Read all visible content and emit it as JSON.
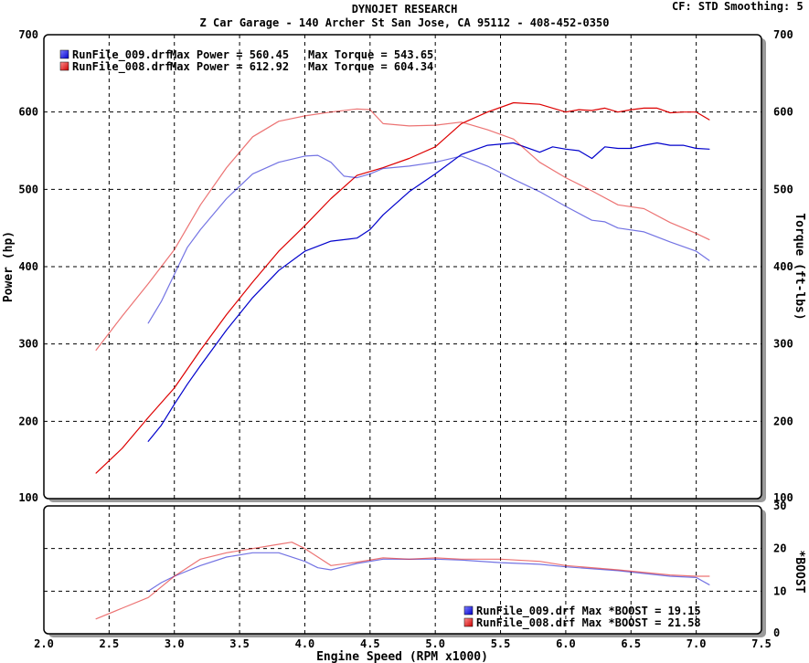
{
  "header": {
    "title": "DYNOJET RESEARCH",
    "subtitle": "Z Car Garage - 140 Archer St San Jose, CA 95112 - 408-452-0350",
    "cf": "CF: STD",
    "smoothing": "Smoothing: 5"
  },
  "legend_main": [
    {
      "run": "RunFile_009.drf",
      "power_label": "Max Power = 560.45",
      "torque_label": "Max Torque = 543.65",
      "color": "#0000cc"
    },
    {
      "run": "RunFile_008.drf",
      "power_label": "Max Power = 612.92",
      "torque_label": "Max Torque = 604.34",
      "color": "#dd0000"
    }
  ],
  "legend_boost": [
    {
      "label": "RunFile_009.drf Max *BOOST = 19.15",
      "color": "#0000cc"
    },
    {
      "label": "RunFile_008.drf Max *BOOST = 21.58",
      "color": "#dd0000"
    }
  ],
  "chart_data": [
    {
      "type": "line",
      "panel": "power-torque",
      "xlabel": "Engine Speed (RPM x1000)",
      "ylabel": "Power (hp)",
      "y2label": "Torque (ft-lbs)",
      "xlim": [
        2.0,
        7.5
      ],
      "ylim": [
        100,
        700
      ],
      "y2lim": [
        100,
        700
      ],
      "xticks": [
        "2.0",
        "2.5",
        "3.0",
        "3.5",
        "4.0",
        "4.5",
        "5.0",
        "5.5",
        "6.0",
        "6.5",
        "7.0",
        "7.5"
      ],
      "yticks": [
        "100",
        "200",
        "300",
        "400",
        "500",
        "600",
        "700"
      ],
      "grid": true,
      "legend": "top-left",
      "series": [
        {
          "name": "RunFile_009.drf Power",
          "color": "#0000cc",
          "style": "solid",
          "x": [
            2.8,
            2.9,
            3.0,
            3.1,
            3.2,
            3.4,
            3.6,
            3.8,
            4.0,
            4.2,
            4.4,
            4.5,
            4.6,
            4.8,
            5.0,
            5.2,
            5.4,
            5.6,
            5.8,
            5.9,
            6.0,
            6.1,
            6.2,
            6.3,
            6.4,
            6.5,
            6.6,
            6.7,
            6.8,
            6.9,
            7.0,
            7.1
          ],
          "y": [
            174,
            195,
            222,
            248,
            272,
            318,
            360,
            395,
            420,
            433,
            437,
            448,
            467,
            497,
            520,
            545,
            557,
            560,
            548,
            555,
            552,
            550,
            540,
            555,
            553,
            553,
            557,
            560,
            557,
            557,
            553,
            552
          ]
        },
        {
          "name": "RunFile_008.drf Power",
          "color": "#dd0000",
          "style": "solid",
          "x": [
            2.4,
            2.6,
            2.8,
            3.0,
            3.2,
            3.4,
            3.6,
            3.8,
            4.0,
            4.2,
            4.4,
            4.6,
            4.8,
            5.0,
            5.2,
            5.4,
            5.6,
            5.8,
            6.0,
            6.1,
            6.2,
            6.3,
            6.4,
            6.5,
            6.6,
            6.7,
            6.8,
            6.9,
            7.0,
            7.1
          ],
          "y": [
            133,
            165,
            205,
            243,
            292,
            338,
            380,
            420,
            453,
            488,
            518,
            528,
            540,
            555,
            585,
            600,
            612,
            610,
            600,
            603,
            602,
            605,
            600,
            603,
            605,
            605,
            599,
            600,
            600,
            590
          ]
        },
        {
          "name": "RunFile_009.drf Torque",
          "color": "#0000cc",
          "style": "faded",
          "x": [
            2.8,
            2.9,
            3.0,
            3.1,
            3.2,
            3.4,
            3.6,
            3.8,
            4.0,
            4.1,
            4.2,
            4.3,
            4.4,
            4.5,
            4.6,
            4.8,
            5.0,
            5.2,
            5.4,
            5.6,
            5.8,
            6.0,
            6.2,
            6.3,
            6.4,
            6.6,
            6.8,
            7.0,
            7.1
          ],
          "y": [
            327,
            355,
            390,
            425,
            448,
            488,
            520,
            535,
            543,
            544,
            535,
            517,
            515,
            520,
            527,
            530,
            535,
            543,
            530,
            513,
            497,
            478,
            460,
            458,
            450,
            445,
            432,
            420,
            408
          ]
        },
        {
          "name": "RunFile_008.drf Torque",
          "color": "#dd0000",
          "style": "faded",
          "x": [
            2.4,
            2.6,
            2.8,
            3.0,
            3.2,
            3.4,
            3.6,
            3.8,
            4.0,
            4.2,
            4.4,
            4.5,
            4.6,
            4.8,
            5.0,
            5.2,
            5.4,
            5.6,
            5.8,
            6.0,
            6.2,
            6.4,
            6.6,
            6.8,
            7.0,
            7.1
          ],
          "y": [
            292,
            336,
            378,
            422,
            480,
            528,
            568,
            588,
            595,
            600,
            604,
            603,
            585,
            582,
            583,
            587,
            577,
            565,
            535,
            515,
            498,
            480,
            475,
            457,
            443,
            435
          ]
        }
      ]
    },
    {
      "type": "line",
      "panel": "boost",
      "xlabel": "Engine Speed (RPM x1000)",
      "ylabel": "*BOOST",
      "xlim": [
        2.0,
        7.5
      ],
      "ylim": [
        0,
        30
      ],
      "yticks": [
        "0",
        "10",
        "20",
        "30"
      ],
      "grid": true,
      "legend": "bottom-right",
      "series": [
        {
          "name": "RunFile_009.drf *BOOST",
          "color": "#0000cc",
          "style": "faded",
          "x": [
            2.8,
            2.9,
            3.0,
            3.2,
            3.4,
            3.6,
            3.8,
            4.0,
            4.1,
            4.2,
            4.4,
            4.6,
            4.8,
            5.0,
            5.2,
            5.5,
            5.8,
            6.0,
            6.4,
            6.8,
            7.0,
            7.1
          ],
          "y": [
            10,
            12,
            13.5,
            16,
            18,
            19,
            19,
            17,
            15.5,
            15,
            16.5,
            17.5,
            17.5,
            17.5,
            17.3,
            16.7,
            16.3,
            15.7,
            14.8,
            13.5,
            13.2,
            11.5
          ]
        },
        {
          "name": "RunFile_008.drf *BOOST",
          "color": "#dd0000",
          "style": "faded",
          "x": [
            2.4,
            2.6,
            2.8,
            3.0,
            3.2,
            3.4,
            3.6,
            3.8,
            3.9,
            4.0,
            4.2,
            4.4,
            4.6,
            4.8,
            5.0,
            5.2,
            5.5,
            5.8,
            6.0,
            6.4,
            6.8,
            7.0,
            7.1
          ],
          "y": [
            3.5,
            6,
            8.5,
            13.5,
            17.5,
            19,
            20,
            21,
            21.5,
            20,
            16,
            16.8,
            17.8,
            17.5,
            17.8,
            17.5,
            17.5,
            17,
            16,
            15,
            13.8,
            13.5,
            13.5
          ]
        }
      ]
    }
  ]
}
